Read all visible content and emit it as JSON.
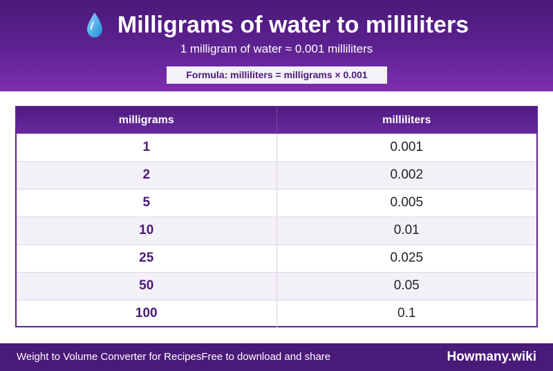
{
  "header": {
    "title": "Milligrams of water to milliliters",
    "subtitle": "1 milligram of water ≈ 0.001 milliliters",
    "formula": "Formula: milliliters = milligrams × 0.001",
    "icon": "water-drop-icon"
  },
  "table": {
    "columns": [
      "milligrams",
      "milliliters"
    ],
    "rows": [
      {
        "mg": "1",
        "ml": "0.001"
      },
      {
        "mg": "2",
        "ml": "0.002"
      },
      {
        "mg": "5",
        "ml": "0.005"
      },
      {
        "mg": "10",
        "ml": "0.01"
      },
      {
        "mg": "25",
        "ml": "0.025"
      },
      {
        "mg": "50",
        "ml": "0.05"
      },
      {
        "mg": "100",
        "ml": "0.1"
      }
    ]
  },
  "footer": {
    "left_text_1": "Weight to Volume Converter for Recipes",
    "left_text_2": "Free to download and share",
    "brand": "Howmany.wiki"
  },
  "colors": {
    "primary": "#4a1a78",
    "accent": "#7d2fb0",
    "drop": "#2a9fe0"
  }
}
